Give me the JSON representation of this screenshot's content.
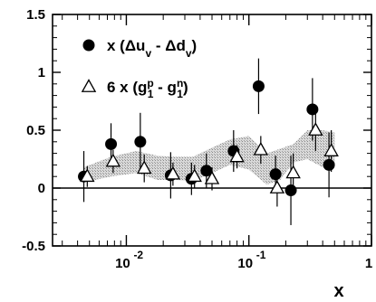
{
  "chart_data": {
    "type": "scatter",
    "title": "",
    "xlabel": "x",
    "ylabel": "",
    "xscale": "log",
    "xlim": [
      0.0025,
      1
    ],
    "ylim": [
      -0.5,
      1.5
    ],
    "grid": false,
    "legend_position": "top-left",
    "zero_line": true,
    "y_ticks": [
      {
        "value": 1.5,
        "label": "1.5"
      },
      {
        "value": 1,
        "label": "1"
      },
      {
        "value": 0.5,
        "label": "0.5"
      },
      {
        "value": 0,
        "label": "0"
      },
      {
        "value": -0.5,
        "label": "-0.5"
      }
    ],
    "x_ticks": [
      {
        "value": 0.01,
        "base": "10",
        "exp": "-2"
      },
      {
        "value": 0.1,
        "base": "10",
        "exp": "-1"
      },
      {
        "value": 1,
        "base": "1",
        "exp": ""
      }
    ],
    "band": {
      "name": "shaded band",
      "color": "#bdbdbd",
      "x": [
        0.0045,
        0.0075,
        0.012,
        0.018,
        0.025,
        0.035,
        0.05,
        0.07,
        0.1,
        0.14,
        0.18,
        0.23,
        0.3,
        0.4,
        0.5
      ],
      "lower": [
        0.05,
        0.1,
        0.13,
        0.07,
        0.07,
        0.06,
        0.13,
        0.2,
        0.16,
        0.03,
        0.07,
        0.22,
        0.25,
        0.18,
        0.2
      ],
      "upper": [
        0.18,
        0.27,
        0.32,
        0.28,
        0.27,
        0.27,
        0.35,
        0.42,
        0.45,
        0.3,
        0.34,
        0.38,
        0.5,
        0.5,
        0.48
      ]
    },
    "series": [
      {
        "name": "x (Δu_v - Δd_v)",
        "legend_text": "x (Δu",
        "legend_parts": [
          "v",
          " - Δd",
          "v",
          ")"
        ],
        "marker": "filled-circle",
        "color": "#000000",
        "points": [
          {
            "x": 0.0045,
            "y": 0.1,
            "err": 0.22
          },
          {
            "x": 0.0075,
            "y": 0.38,
            "err": 0.18
          },
          {
            "x": 0.013,
            "y": 0.4,
            "err": 0.25
          },
          {
            "x": 0.023,
            "y": 0.11,
            "err": 0.2
          },
          {
            "x": 0.034,
            "y": 0.08,
            "err": 0.14
          },
          {
            "x": 0.045,
            "y": 0.15,
            "err": 0.15
          },
          {
            "x": 0.075,
            "y": 0.32,
            "err": 0.18
          },
          {
            "x": 0.12,
            "y": 0.88,
            "err": 0.24
          },
          {
            "x": 0.165,
            "y": 0.12,
            "err": 0.16
          },
          {
            "x": 0.22,
            "y": -0.02,
            "err": 0.3
          },
          {
            "x": 0.33,
            "y": 0.68,
            "err": 0.27
          },
          {
            "x": 0.45,
            "y": 0.2,
            "err": 0.28
          }
        ]
      },
      {
        "name": "6 x (g_1^p - g_1^n)",
        "legend_text": "6 x (g",
        "marker": "open-triangle",
        "color": "#000000",
        "points": [
          {
            "x": 0.0048,
            "y": 0.1,
            "err": 0.09
          },
          {
            "x": 0.0078,
            "y": 0.23,
            "err": 0.1
          },
          {
            "x": 0.014,
            "y": 0.17,
            "err": 0.12
          },
          {
            "x": 0.024,
            "y": 0.12,
            "err": 0.1
          },
          {
            "x": 0.036,
            "y": 0.1,
            "err": 0.1
          },
          {
            "x": 0.05,
            "y": 0.08,
            "err": 0.1
          },
          {
            "x": 0.08,
            "y": 0.27,
            "err": 0.1
          },
          {
            "x": 0.125,
            "y": 0.33,
            "err": 0.12
          },
          {
            "x": 0.17,
            "y": 0.0,
            "err": 0.16
          },
          {
            "x": 0.23,
            "y": 0.13,
            "err": 0.17
          },
          {
            "x": 0.35,
            "y": 0.5,
            "err": 0.18
          },
          {
            "x": 0.47,
            "y": 0.32,
            "err": 0.18
          }
        ]
      }
    ]
  }
}
